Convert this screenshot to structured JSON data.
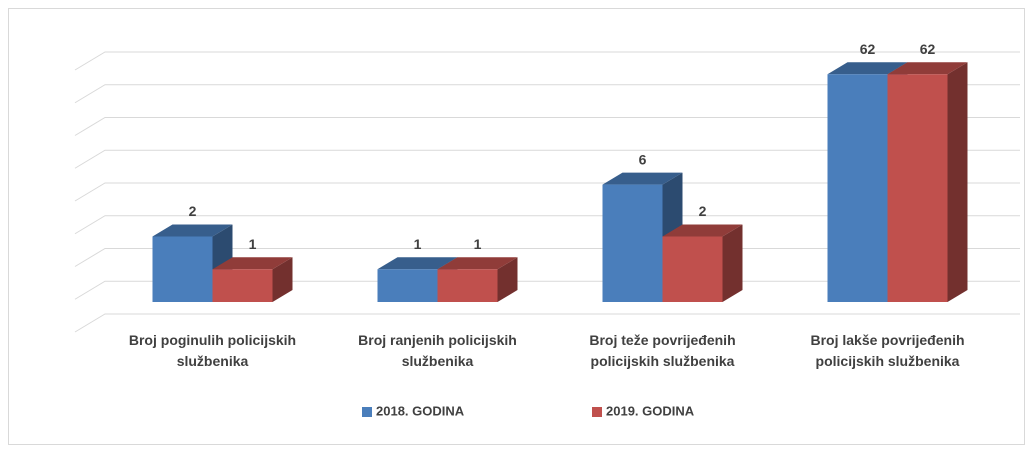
{
  "chart_data": {
    "type": "bar3d",
    "categories": [
      "Broj poginulih policijskih službenika",
      "Broj ranjenih policijskih službenika",
      "Broj teže povrijeđenih policijskih službenika",
      "Broj lakše povrijeđenih policijskih službenika"
    ],
    "series": [
      {
        "name": "2018. GODINA",
        "color": "#4a7ebb",
        "values": [
          2,
          1,
          6,
          62
        ]
      },
      {
        "name": "2019. GODINA",
        "color": "#c0504d",
        "values": [
          1,
          1,
          2,
          62
        ]
      }
    ],
    "log_scale": true,
    "ylim": [
      0.5,
      128
    ],
    "yticks": [
      0.5,
      1,
      2,
      4,
      8,
      16,
      32,
      64,
      128
    ],
    "grid": true,
    "legend": "bottom"
  }
}
